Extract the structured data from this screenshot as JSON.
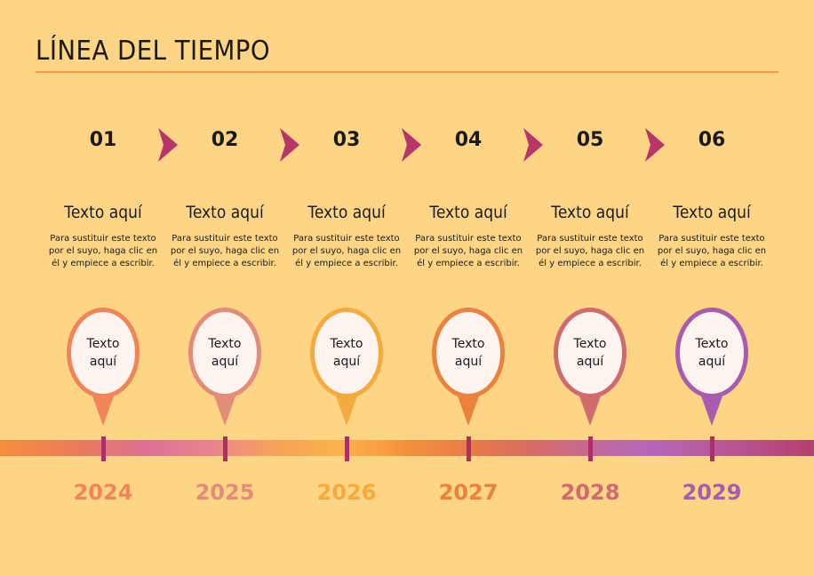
{
  "title": "LÍNEA DEL TIEMPO",
  "accent": "#b8356a",
  "items": [
    {
      "number": "01",
      "heading": "Texto aquí",
      "body": "Para sustituir este texto por el suyo, haga clic en él y empiece a escribir.",
      "pin_line1": "Texto",
      "pin_line2": "aquí",
      "year": "2024",
      "color": "#f0855a"
    },
    {
      "number": "02",
      "heading": "Texto aquí",
      "body": "Para sustituir este texto por el suyo, haga clic en él y empiece a escribir.",
      "pin_line1": "Texto",
      "pin_line2": "aquí",
      "year": "2025",
      "color": "#e28d7a"
    },
    {
      "number": "03",
      "heading": "Texto aquí",
      "body": "Para sustituir este texto por el suyo, haga clic en él y empiece a escribir.",
      "pin_line1": "Texto",
      "pin_line2": "aquí",
      "year": "2026",
      "color": "#f5aa3e"
    },
    {
      "number": "04",
      "heading": "Texto aquí",
      "body": "Para sustituir este texto por el suyo, haga clic en él y empiece a escribir.",
      "pin_line1": "Texto",
      "pin_line2": "aquí",
      "year": "2027",
      "color": "#e8823d"
    },
    {
      "number": "05",
      "heading": "Texto aquí",
      "body": "Para sustituir este texto por el suyo, haga clic en él y empiece a escribir.",
      "pin_line1": "Texto",
      "pin_line2": "aquí",
      "year": "2028",
      "color": "#cf6a6e"
    },
    {
      "number": "06",
      "heading": "Texto aquí",
      "body": "Para sustituir este texto por el suyo, haga clic en él y empiece a escribir.",
      "pin_line1": "Texto",
      "pin_line2": "aquí",
      "year": "2029",
      "color": "#a85cb0"
    }
  ]
}
